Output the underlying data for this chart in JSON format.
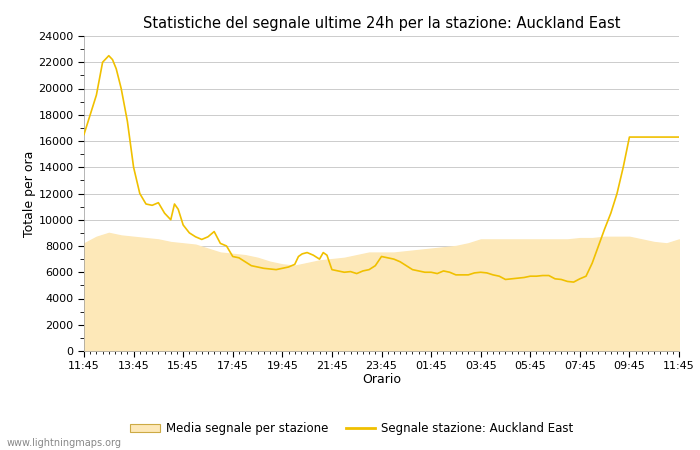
{
  "title": "Statistiche del segnale ultime 24h per la stazione: Auckland East",
  "xlabel": "Orario",
  "ylabel": "Totale per ora",
  "xlabels": [
    "11:45",
    "13:45",
    "15:45",
    "17:45",
    "19:45",
    "21:45",
    "23:45",
    "01:45",
    "03:45",
    "05:45",
    "07:45",
    "09:45",
    "11:45"
  ],
  "ylim": [
    0,
    24000
  ],
  "yticks": [
    0,
    2000,
    4000,
    6000,
    8000,
    10000,
    12000,
    14000,
    16000,
    18000,
    20000,
    22000,
    24000
  ],
  "line_color": "#f0c000",
  "fill_color": "#fde8b8",
  "fill_alpha": 1.0,
  "background_color": "#ffffff",
  "grid_color": "#cccccc",
  "watermark": "www.lightningmaps.org",
  "legend_fill_label": "Media segnale per stazione",
  "legend_line_label": "Segnale stazione: Auckland East",
  "signal_x": [
    0,
    0.5,
    1,
    1.5,
    2,
    2.3,
    2.6,
    3,
    3.5,
    4,
    4.5,
    5,
    5.5,
    6,
    6.5,
    7,
    7.3,
    7.6,
    8,
    8.5,
    9,
    9.5,
    10,
    10.5,
    11,
    11.5,
    12,
    12.5,
    13,
    13.5,
    14,
    14.5,
    15,
    15.5,
    16,
    16.5,
    17,
    17.3,
    17.6,
    18,
    18.5,
    19,
    19.3,
    19.6,
    20,
    20.5,
    21,
    21.5,
    22,
    22.5,
    23,
    23.5,
    24,
    24.5,
    25,
    25.5,
    26,
    26.5,
    27,
    27.5,
    28,
    28.5,
    29,
    29.5,
    30,
    30.5,
    31,
    31.5,
    32,
    32.5,
    33,
    33.5,
    34,
    34.5,
    35,
    35.5,
    36,
    36.5,
    37,
    37.5,
    38,
    38.5,
    39,
    39.5,
    40,
    40.5,
    41,
    41.5,
    42,
    42.5,
    43,
    43.5,
    44,
    44.5,
    45,
    45.5,
    46,
    46.5,
    47,
    47.5,
    48
  ],
  "signal_y": [
    16500,
    18000,
    19500,
    22000,
    22500,
    22200,
    21500,
    20000,
    17500,
    14000,
    12000,
    11200,
    11100,
    11300,
    10500,
    10000,
    11200,
    10800,
    9600,
    9000,
    8700,
    8500,
    8700,
    9100,
    8200,
    8000,
    7200,
    7100,
    6800,
    6500,
    6400,
    6300,
    6250,
    6200,
    6300,
    6400,
    6600,
    7200,
    7400,
    7500,
    7300,
    7000,
    7500,
    7300,
    6200,
    6100,
    6000,
    6050,
    5900,
    6100,
    6200,
    6500,
    7200,
    7100,
    7000,
    6800,
    6500,
    6200,
    6100,
    6000,
    6000,
    5900,
    6100,
    6000,
    5800,
    5800,
    5800,
    5950,
    6000,
    5950,
    5800,
    5700,
    5450,
    5500,
    5550,
    5600,
    5700,
    5700,
    5750,
    5750,
    5500,
    5450,
    5300,
    5250,
    5500,
    5700,
    6700,
    8000,
    9300,
    10500,
    12000,
    14000,
    16300,
    16300,
    16300,
    16300,
    16300,
    16300,
    16300,
    16300,
    16300
  ],
  "avg_x": [
    0,
    1,
    2,
    3,
    4,
    5,
    6,
    7,
    8,
    9,
    10,
    11,
    12,
    13,
    14,
    15,
    16,
    17,
    18,
    19,
    20,
    21,
    22,
    23,
    24,
    25,
    26,
    27,
    28,
    29,
    30,
    31,
    32,
    33,
    34,
    35,
    36,
    37,
    38,
    39,
    40,
    41,
    42,
    43,
    44,
    45,
    46,
    47,
    48
  ],
  "avg_y": [
    8200,
    8700,
    9000,
    8800,
    8700,
    8600,
    8500,
    8300,
    8200,
    8100,
    7800,
    7500,
    7400,
    7300,
    7100,
    6800,
    6600,
    6500,
    6700,
    6900,
    7000,
    7100,
    7300,
    7500,
    7500,
    7500,
    7600,
    7700,
    7800,
    7900,
    8000,
    8200,
    8500,
    8500,
    8500,
    8500,
    8500,
    8500,
    8500,
    8500,
    8600,
    8600,
    8700,
    8700,
    8700,
    8500,
    8300,
    8200,
    8500
  ]
}
